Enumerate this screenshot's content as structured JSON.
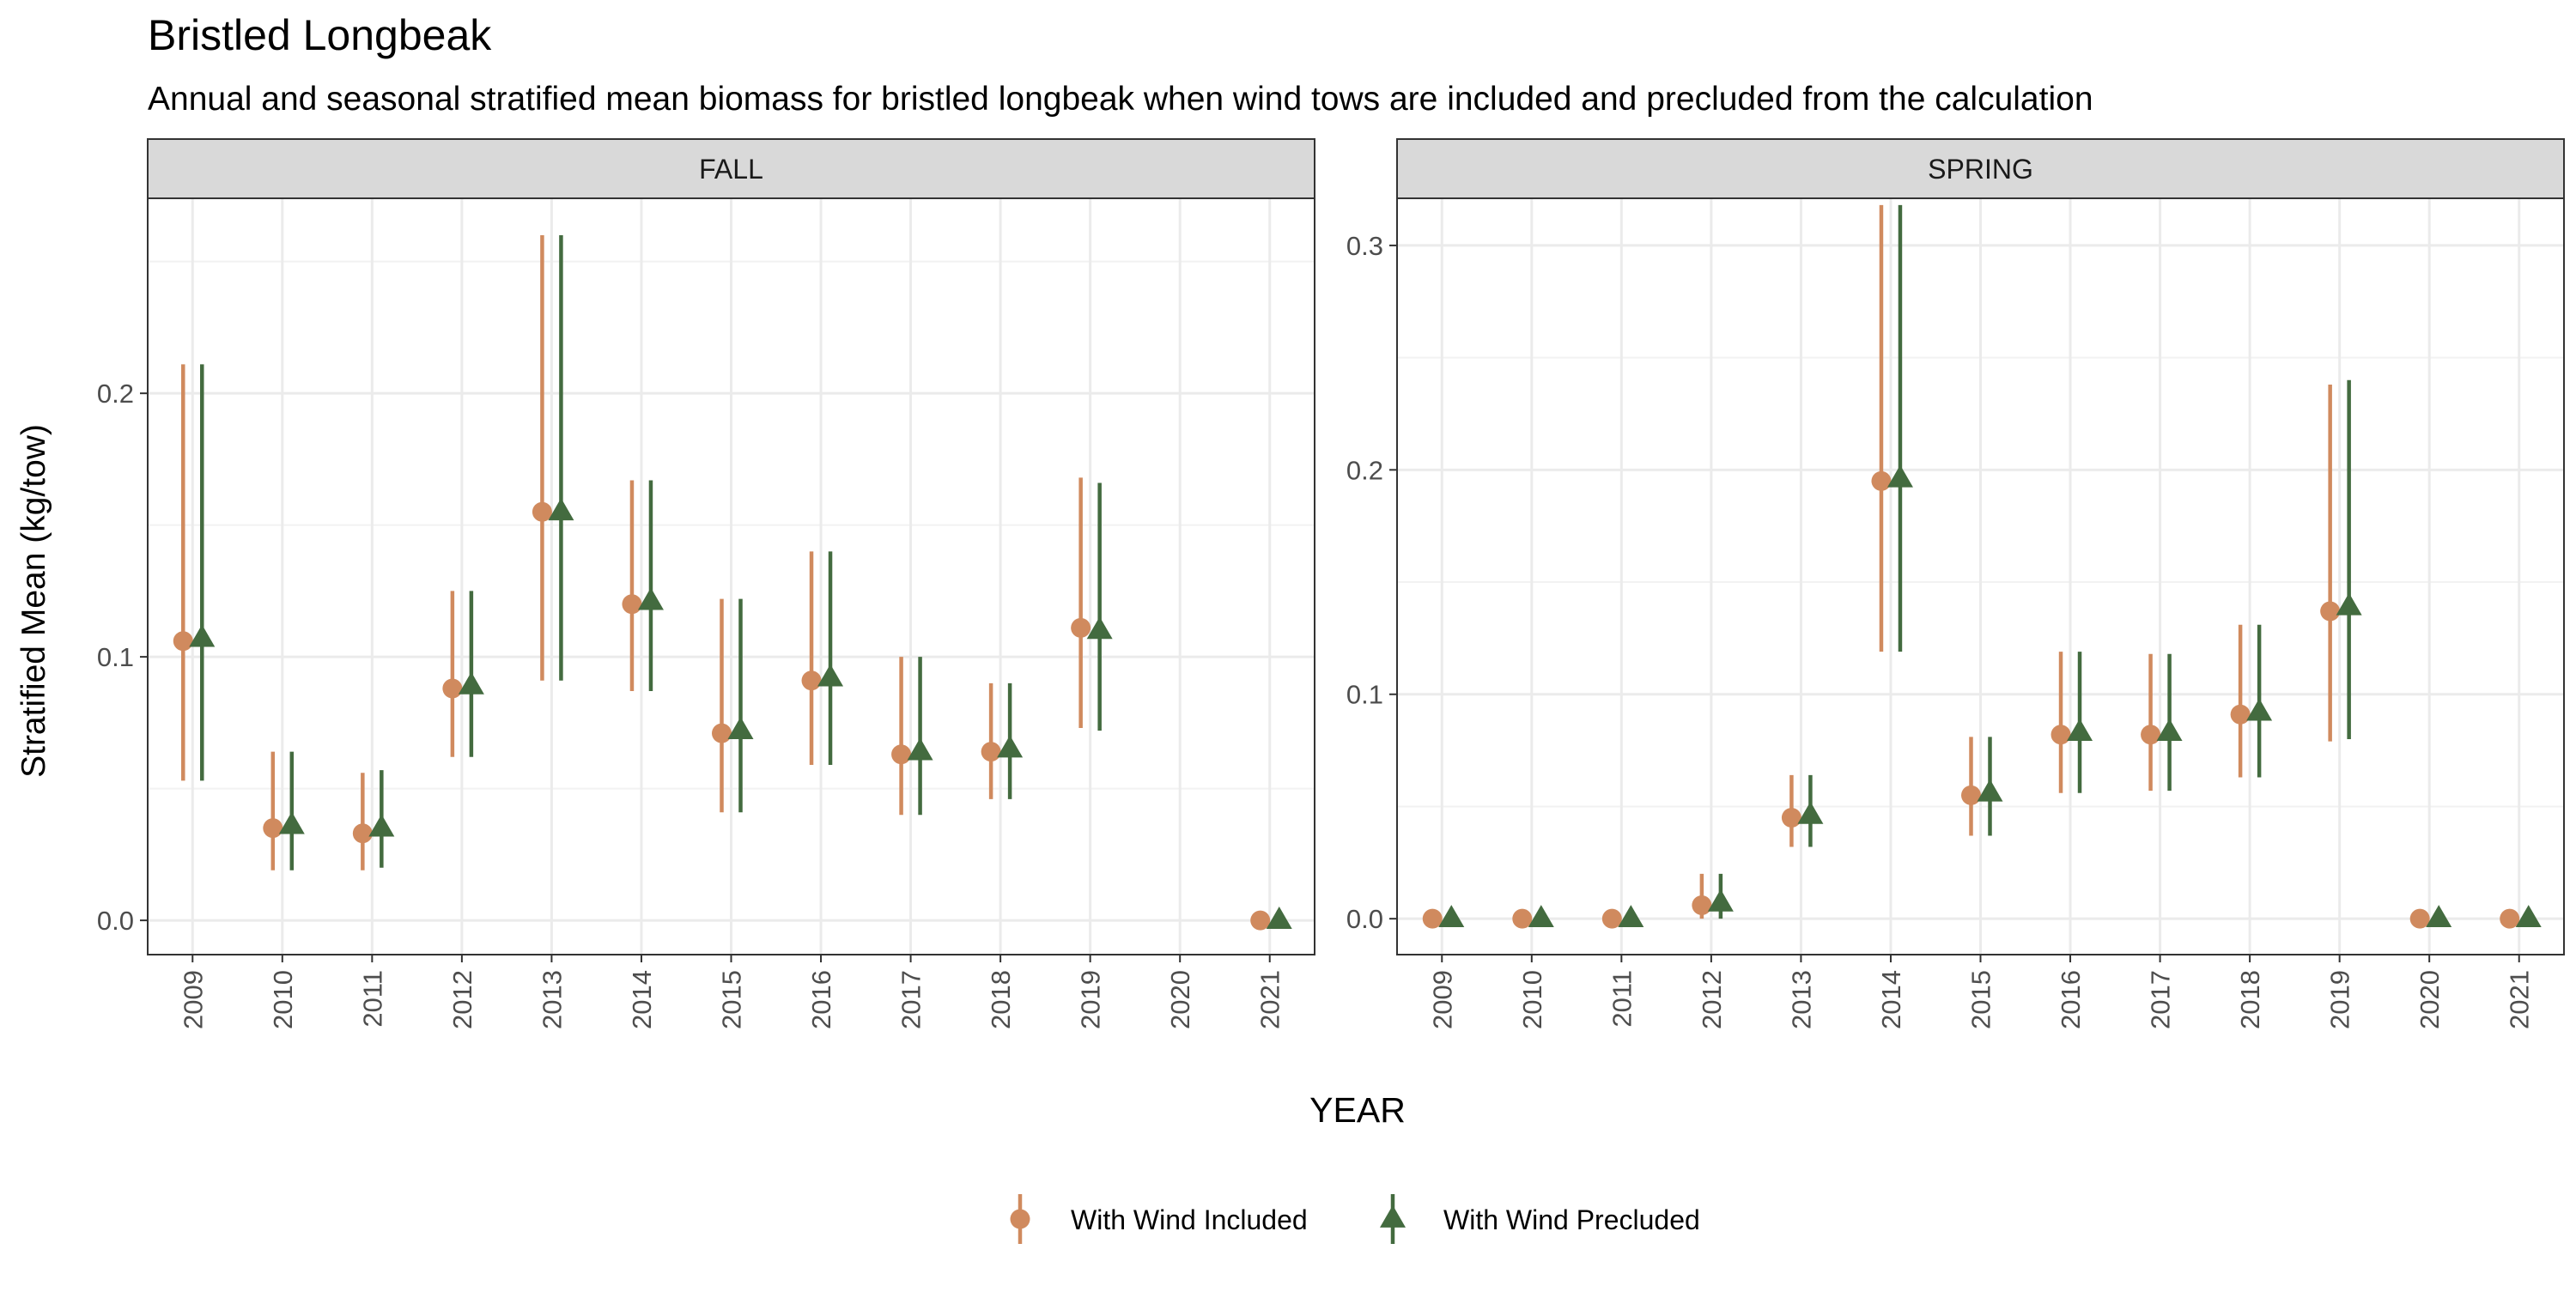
{
  "chart_data": {
    "type": "scatter",
    "title": "Bristled Longbeak",
    "subtitle": "Annual and seasonal stratified mean biomass for bristled longbeak when wind tows are included and precluded from the calculation",
    "xlabel": "YEAR",
    "ylabel": "Stratified Mean (kg/tow)",
    "grid": true,
    "legend_position": "bottom",
    "categories": [
      "2009",
      "2010",
      "2011",
      "2012",
      "2013",
      "2014",
      "2015",
      "2016",
      "2017",
      "2018",
      "2019",
      "2020",
      "2021"
    ],
    "legend": [
      {
        "name": "With Wind Included",
        "color": "#D08A5E",
        "marker": "circle"
      },
      {
        "name": "With Wind Precluded",
        "color": "#436B3F",
        "marker": "triangle"
      }
    ],
    "panels": [
      {
        "name": "FALL",
        "ylim": [
          -0.013,
          0.274
        ],
        "yticks": [
          0.0,
          0.1,
          0.2
        ],
        "ytick_labels": [
          "0.0",
          "0.1",
          "0.2"
        ],
        "series": [
          {
            "name": "With Wind Included",
            "points": [
              {
                "x": "2009",
                "y": 0.106,
                "lo": 0.053,
                "hi": 0.211
              },
              {
                "x": "2010",
                "y": 0.035,
                "lo": 0.019,
                "hi": 0.064
              },
              {
                "x": "2011",
                "y": 0.033,
                "lo": 0.019,
                "hi": 0.056
              },
              {
                "x": "2012",
                "y": 0.088,
                "lo": 0.062,
                "hi": 0.125
              },
              {
                "x": "2013",
                "y": 0.155,
                "lo": 0.091,
                "hi": 0.26
              },
              {
                "x": "2014",
                "y": 0.12,
                "lo": 0.087,
                "hi": 0.167
              },
              {
                "x": "2015",
                "y": 0.071,
                "lo": 0.041,
                "hi": 0.122
              },
              {
                "x": "2016",
                "y": 0.091,
                "lo": 0.059,
                "hi": 0.14
              },
              {
                "x": "2017",
                "y": 0.063,
                "lo": 0.04,
                "hi": 0.1
              },
              {
                "x": "2018",
                "y": 0.064,
                "lo": 0.046,
                "hi": 0.09
              },
              {
                "x": "2019",
                "y": 0.111,
                "lo": 0.073,
                "hi": 0.168
              },
              {
                "x": "2021",
                "y": 0.0,
                "lo": 0.0,
                "hi": 0.0
              }
            ]
          },
          {
            "name": "With Wind Precluded",
            "points": [
              {
                "x": "2009",
                "y": 0.107,
                "lo": 0.053,
                "hi": 0.211
              },
              {
                "x": "2010",
                "y": 0.036,
                "lo": 0.019,
                "hi": 0.064
              },
              {
                "x": "2011",
                "y": 0.035,
                "lo": 0.02,
                "hi": 0.057
              },
              {
                "x": "2012",
                "y": 0.089,
                "lo": 0.062,
                "hi": 0.125
              },
              {
                "x": "2013",
                "y": 0.155,
                "lo": 0.091,
                "hi": 0.26
              },
              {
                "x": "2014",
                "y": 0.121,
                "lo": 0.087,
                "hi": 0.167
              },
              {
                "x": "2015",
                "y": 0.072,
                "lo": 0.041,
                "hi": 0.122
              },
              {
                "x": "2016",
                "y": 0.092,
                "lo": 0.059,
                "hi": 0.14
              },
              {
                "x": "2017",
                "y": 0.064,
                "lo": 0.04,
                "hi": 0.1
              },
              {
                "x": "2018",
                "y": 0.065,
                "lo": 0.046,
                "hi": 0.09
              },
              {
                "x": "2019",
                "y": 0.11,
                "lo": 0.072,
                "hi": 0.166
              },
              {
                "x": "2021",
                "y": 0.0,
                "lo": 0.0,
                "hi": 0.0
              }
            ]
          }
        ]
      },
      {
        "name": "SPRING",
        "ylim": [
          -0.016,
          0.321
        ],
        "yticks": [
          0.0,
          0.1,
          0.2,
          0.3
        ],
        "ytick_labels": [
          "0.0",
          "0.1",
          "0.2",
          "0.3"
        ],
        "series": [
          {
            "name": "With Wind Included",
            "points": [
              {
                "x": "2009",
                "y": 0.0,
                "lo": 0.0,
                "hi": 0.0
              },
              {
                "x": "2010",
                "y": 0.0,
                "lo": 0.0,
                "hi": 0.0
              },
              {
                "x": "2011",
                "y": 0.0,
                "lo": 0.0,
                "hi": 0.0
              },
              {
                "x": "2012",
                "y": 0.006,
                "lo": 0.0,
                "hi": 0.02
              },
              {
                "x": "2013",
                "y": 0.045,
                "lo": 0.032,
                "hi": 0.064
              },
              {
                "x": "2014",
                "y": 0.195,
                "lo": 0.119,
                "hi": 0.318
              },
              {
                "x": "2015",
                "y": 0.055,
                "lo": 0.037,
                "hi": 0.081
              },
              {
                "x": "2016",
                "y": 0.082,
                "lo": 0.056,
                "hi": 0.119
              },
              {
                "x": "2017",
                "y": 0.082,
                "lo": 0.057,
                "hi": 0.118
              },
              {
                "x": "2018",
                "y": 0.091,
                "lo": 0.063,
                "hi": 0.131
              },
              {
                "x": "2019",
                "y": 0.137,
                "lo": 0.079,
                "hi": 0.238
              },
              {
                "x": "2020",
                "y": 0.0,
                "lo": 0.0,
                "hi": 0.0
              },
              {
                "x": "2021",
                "y": 0.0,
                "lo": 0.0,
                "hi": 0.0
              }
            ]
          },
          {
            "name": "With Wind Precluded",
            "points": [
              {
                "x": "2009",
                "y": 0.0,
                "lo": 0.0,
                "hi": 0.0
              },
              {
                "x": "2010",
                "y": 0.0,
                "lo": 0.0,
                "hi": 0.0
              },
              {
                "x": "2011",
                "y": 0.0,
                "lo": 0.0,
                "hi": 0.0
              },
              {
                "x": "2012",
                "y": 0.007,
                "lo": 0.0,
                "hi": 0.02
              },
              {
                "x": "2013",
                "y": 0.046,
                "lo": 0.032,
                "hi": 0.064
              },
              {
                "x": "2014",
                "y": 0.196,
                "lo": 0.119,
                "hi": 0.318
              },
              {
                "x": "2015",
                "y": 0.056,
                "lo": 0.037,
                "hi": 0.081
              },
              {
                "x": "2016",
                "y": 0.083,
                "lo": 0.056,
                "hi": 0.119
              },
              {
                "x": "2017",
                "y": 0.083,
                "lo": 0.057,
                "hi": 0.118
              },
              {
                "x": "2018",
                "y": 0.092,
                "lo": 0.063,
                "hi": 0.131
              },
              {
                "x": "2019",
                "y": 0.139,
                "lo": 0.08,
                "hi": 0.24
              },
              {
                "x": "2020",
                "y": 0.0,
                "lo": 0.0,
                "hi": 0.0
              },
              {
                "x": "2021",
                "y": 0.0,
                "lo": 0.0,
                "hi": 0.0
              }
            ]
          }
        ]
      }
    ]
  }
}
